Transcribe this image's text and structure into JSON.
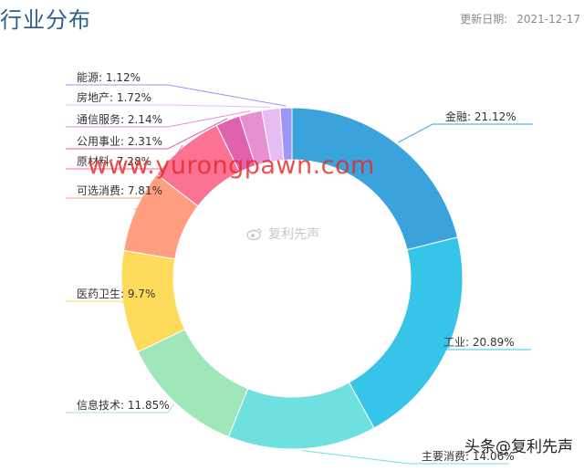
{
  "header": {
    "title": "行业分布",
    "updated_label": "更新日期:",
    "updated_date": "2021-12-17"
  },
  "watermarks": {
    "url": "www.yurongpawn.com",
    "center": "复利先声",
    "footer": "头条@复利先声"
  },
  "chart_data": {
    "type": "pie",
    "donut": true,
    "title": "行业分布",
    "slices": [
      {
        "label": "金融: 21.12%",
        "name": "金融",
        "value": 21.12,
        "color": "#3ba3dc"
      },
      {
        "label": "工业: 20.89%",
        "name": "工业",
        "value": 20.89,
        "color": "#36c5e8"
      },
      {
        "label": "主要消费: 14.06%",
        "name": "主要消费",
        "value": 14.06,
        "color": "#6fe0e0"
      },
      {
        "label": "信息技术: 11.85%",
        "name": "信息技术",
        "value": 11.85,
        "color": "#9fe6b8"
      },
      {
        "label": "医药卫生: 9.7%",
        "name": "医药卫生",
        "value": 9.7,
        "color": "#ffdb5c"
      },
      {
        "label": "可选消费: 7.81%",
        "name": "可选消费",
        "value": 7.81,
        "color": "#ff9f7f"
      },
      {
        "label": "原材料: 7.28%",
        "name": "原材料",
        "value": 7.28,
        "color": "#fb7293"
      },
      {
        "label": "公用事业: 2.31%",
        "name": "公用事业",
        "value": 2.31,
        "color": "#e062ae"
      },
      {
        "label": "通信服务: 2.14%",
        "name": "通信服务",
        "value": 2.14,
        "color": "#e690d1"
      },
      {
        "label": "房地产: 1.72%",
        "name": "房地产",
        "value": 1.72,
        "color": "#e7bcf3"
      },
      {
        "label": "能源: 1.12%",
        "name": "能源",
        "value": 1.12,
        "color": "#9d96f5"
      }
    ]
  }
}
